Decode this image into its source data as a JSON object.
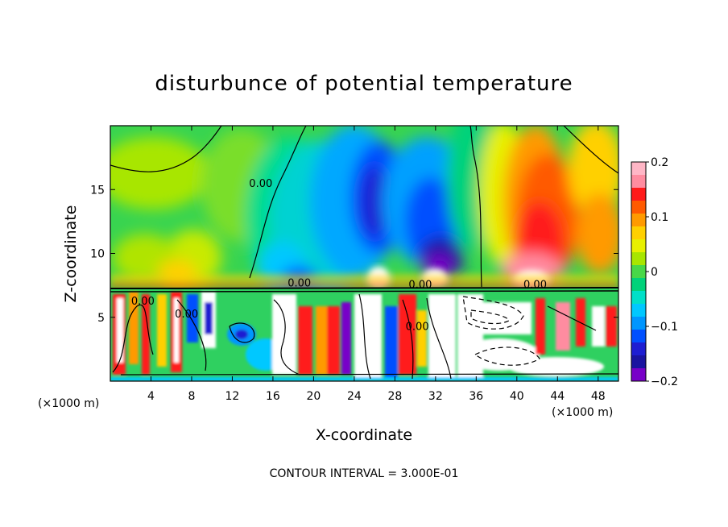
{
  "chart_data": {
    "type": "heatmap",
    "title": "disturbunce of potential temperature",
    "xlabel": "X-coordinate",
    "ylabel": "Z-coordinate",
    "x_unit_left": "(×1000 m)",
    "x_unit_right": "(×1000 m)",
    "x_ticks": [
      4,
      8,
      12,
      16,
      20,
      24,
      28,
      32,
      36,
      40,
      44,
      48
    ],
    "x_tick_labels": [
      "4",
      "8",
      "12",
      "16",
      "20",
      "24",
      "28",
      "32",
      "36",
      "40",
      "44",
      "48"
    ],
    "y_ticks": [
      5,
      10,
      15
    ],
    "y_tick_labels": [
      "5",
      "10",
      "15"
    ],
    "xlim": [
      0,
      50
    ],
    "ylim": [
      0,
      20
    ],
    "colorbar": {
      "range": [
        -0.2,
        0.2
      ],
      "tick_values": [
        0.2,
        0.1,
        0,
        -0.1,
        -0.2
      ],
      "tick_labels": [
        "0.2",
        "0.1",
        "0",
        "−0.1",
        "−0.2"
      ],
      "colors": [
        "#ffb6c6",
        "#ff8ca0",
        "#ff1a1a",
        "#ff5a00",
        "#ff9a00",
        "#ffd000",
        "#e8f000",
        "#a8e600",
        "#48d848",
        "#00d27a",
        "#00e0c8",
        "#00c8ff",
        "#0096ff",
        "#0050ff",
        "#1e1ed2",
        "#1a14a0",
        "#7800c8"
      ]
    },
    "contour_labels": [
      {
        "text": "0.00",
        "x": 14.8,
        "y": 15.2
      },
      {
        "text": "0.00",
        "x": 18.6,
        "y": 7.4
      },
      {
        "text": "0.00",
        "x": 30.5,
        "y": 7.3
      },
      {
        "text": "0.00",
        "x": 41.8,
        "y": 7.3
      },
      {
        "text": "0.00",
        "x": 3.2,
        "y": 6.0
      },
      {
        "text": "0.00",
        "x": 7.5,
        "y": 5.0
      },
      {
        "text": "0.00",
        "x": 30.2,
        "y": 4.0
      }
    ],
    "contour_interval_text": "CONTOUR INTERVAL = 3.000E-01"
  }
}
